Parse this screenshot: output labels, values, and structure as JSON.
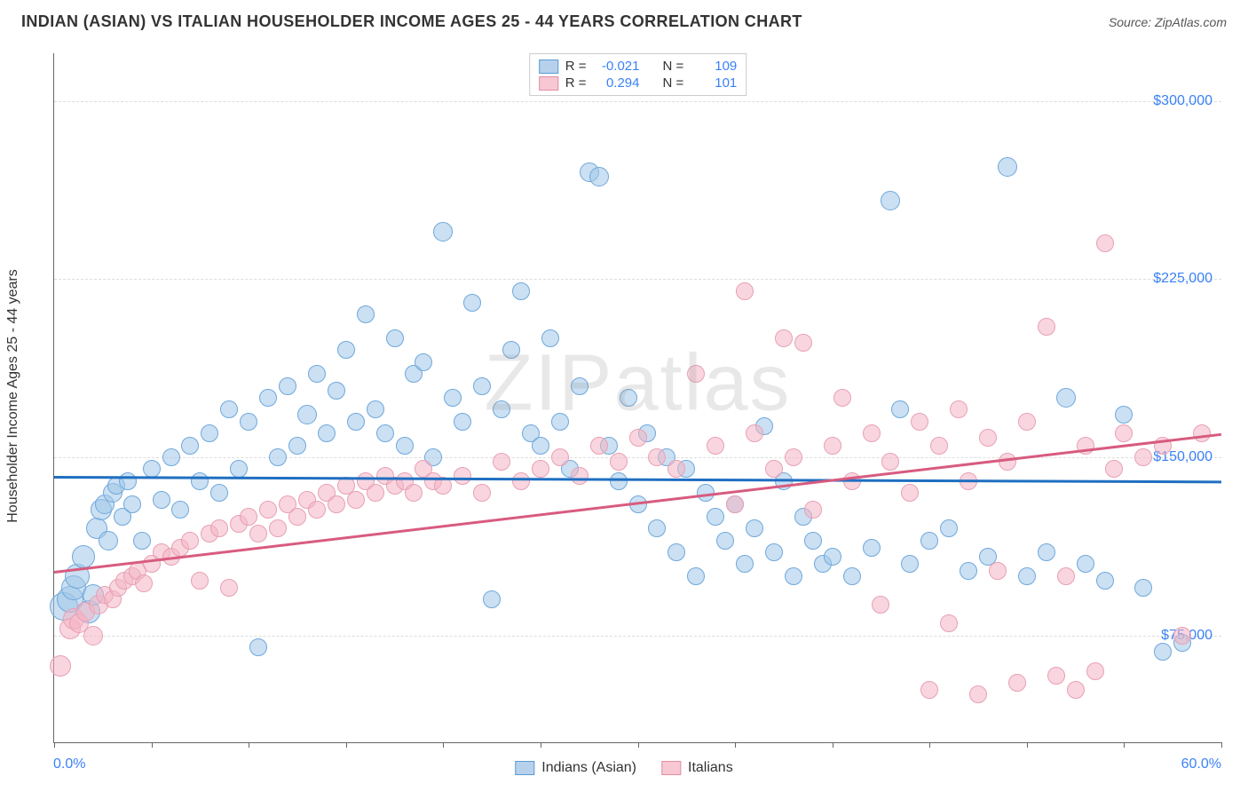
{
  "header": {
    "title": "INDIAN (ASIAN) VS ITALIAN HOUSEHOLDER INCOME AGES 25 - 44 YEARS CORRELATION CHART",
    "source": "Source: ZipAtlas.com"
  },
  "watermark": "ZIPatlas",
  "chart": {
    "type": "scatter",
    "background_color": "#ffffff",
    "grid_color": "#dddddd",
    "axis_color": "#666666",
    "y_axis_title": "Householder Income Ages 25 - 44 years",
    "y_axis_title_fontsize": 16,
    "xlim": [
      0,
      60
    ],
    "ylim": [
      30000,
      320000
    ],
    "x_ticks": [
      0,
      5,
      10,
      15,
      20,
      25,
      30,
      35,
      40,
      45,
      50,
      55,
      60
    ],
    "x_tick_labels": {
      "min": "0.0%",
      "max": "60.0%"
    },
    "y_grid": [
      75000,
      150000,
      225000,
      300000
    ],
    "y_tick_labels": [
      "$75,000",
      "$150,000",
      "$225,000",
      "$300,000"
    ],
    "tick_label_color": "#3b82f6",
    "tick_label_fontsize": 16,
    "legend_top": {
      "rows": [
        {
          "swatch_fill": "#b7d1ed",
          "swatch_border": "#5a9bd5",
          "r_label": "R =",
          "r_value": "-0.021",
          "n_label": "N =",
          "n_value": "109"
        },
        {
          "swatch_fill": "#f7c8d3",
          "swatch_border": "#e28da3",
          "r_label": "R =",
          "r_value": "0.294",
          "n_label": "N =",
          "n_value": "101"
        }
      ]
    },
    "legend_bottom": [
      {
        "swatch_fill": "#b7d1ed",
        "swatch_border": "#5a9bd5",
        "label": "Indians (Asian)"
      },
      {
        "swatch_fill": "#f7c8d3",
        "swatch_border": "#e28da3",
        "label": "Italians"
      }
    ],
    "series": [
      {
        "name": "Indians (Asian)",
        "marker_fill": "rgba(160,198,232,0.55)",
        "marker_border": "#6fa8dc",
        "marker_radius": 10,
        "trend": {
          "color": "#1f6fc1",
          "y_at_xmin": 142000,
          "y_at_xmax": 140000,
          "width": 2.5
        },
        "points": [
          [
            0.5,
            87000,
            16
          ],
          [
            0.8,
            90000,
            15
          ],
          [
            1.0,
            95000,
            14
          ],
          [
            1.2,
            100000,
            14
          ],
          [
            1.5,
            108000,
            13
          ],
          [
            1.8,
            85000,
            13
          ],
          [
            2.0,
            92000,
            12
          ],
          [
            2.2,
            120000,
            12
          ],
          [
            2.4,
            128000,
            12
          ],
          [
            2.6,
            130000,
            11
          ],
          [
            2.8,
            115000,
            11
          ],
          [
            3.0,
            135000,
            11
          ],
          [
            3.2,
            138000,
            10
          ],
          [
            3.5,
            125000,
            10
          ],
          [
            3.8,
            140000,
            10
          ],
          [
            4.0,
            130000,
            10
          ],
          [
            4.5,
            115000,
            10
          ],
          [
            5.0,
            145000,
            10
          ],
          [
            5.5,
            132000,
            10
          ],
          [
            6.0,
            150000,
            10
          ],
          [
            6.5,
            128000,
            10
          ],
          [
            7.0,
            155000,
            10
          ],
          [
            7.5,
            140000,
            10
          ],
          [
            8.0,
            160000,
            10
          ],
          [
            8.5,
            135000,
            10
          ],
          [
            9.0,
            170000,
            10
          ],
          [
            9.5,
            145000,
            10
          ],
          [
            10.0,
            165000,
            10
          ],
          [
            10.5,
            70000,
            10
          ],
          [
            11.0,
            175000,
            10
          ],
          [
            11.5,
            150000,
            10
          ],
          [
            12.0,
            180000,
            10
          ],
          [
            12.5,
            155000,
            10
          ],
          [
            13.0,
            168000,
            11
          ],
          [
            13.5,
            185000,
            10
          ],
          [
            14.0,
            160000,
            10
          ],
          [
            14.5,
            178000,
            10
          ],
          [
            15.0,
            195000,
            10
          ],
          [
            15.5,
            165000,
            10
          ],
          [
            16.0,
            210000,
            10
          ],
          [
            16.5,
            170000,
            10
          ],
          [
            17.0,
            160000,
            10
          ],
          [
            17.5,
            200000,
            10
          ],
          [
            18.0,
            155000,
            10
          ],
          [
            18.5,
            185000,
            10
          ],
          [
            19.0,
            190000,
            10
          ],
          [
            19.5,
            150000,
            10
          ],
          [
            20.0,
            245000,
            11
          ],
          [
            20.5,
            175000,
            10
          ],
          [
            21.0,
            165000,
            10
          ],
          [
            21.5,
            215000,
            10
          ],
          [
            22.0,
            180000,
            10
          ],
          [
            22.5,
            90000,
            10
          ],
          [
            23.0,
            170000,
            10
          ],
          [
            23.5,
            195000,
            10
          ],
          [
            24.0,
            220000,
            10
          ],
          [
            24.5,
            160000,
            10
          ],
          [
            25.0,
            155000,
            10
          ],
          [
            25.5,
            200000,
            10
          ],
          [
            26.0,
            165000,
            10
          ],
          [
            26.5,
            145000,
            10
          ],
          [
            27.0,
            180000,
            10
          ],
          [
            27.5,
            270000,
            11
          ],
          [
            28.0,
            268000,
            11
          ],
          [
            28.5,
            155000,
            10
          ],
          [
            29.0,
            140000,
            10
          ],
          [
            29.5,
            175000,
            10
          ],
          [
            30.0,
            130000,
            10
          ],
          [
            30.5,
            160000,
            10
          ],
          [
            31.0,
            120000,
            10
          ],
          [
            31.5,
            150000,
            10
          ],
          [
            32.0,
            110000,
            10
          ],
          [
            32.5,
            145000,
            10
          ],
          [
            33.0,
            100000,
            10
          ],
          [
            33.5,
            135000,
            10
          ],
          [
            34.0,
            125000,
            10
          ],
          [
            34.5,
            115000,
            10
          ],
          [
            35.0,
            130000,
            10
          ],
          [
            35.5,
            105000,
            10
          ],
          [
            36.0,
            120000,
            10
          ],
          [
            36.5,
            163000,
            10
          ],
          [
            37.0,
            110000,
            10
          ],
          [
            37.5,
            140000,
            10
          ],
          [
            38.0,
            100000,
            10
          ],
          [
            38.5,
            125000,
            10
          ],
          [
            39.0,
            115000,
            10
          ],
          [
            39.5,
            105000,
            10
          ],
          [
            40.0,
            108000,
            10
          ],
          [
            41.0,
            100000,
            10
          ],
          [
            42.0,
            112000,
            10
          ],
          [
            43.0,
            258000,
            11
          ],
          [
            43.5,
            170000,
            10
          ],
          [
            44.0,
            105000,
            10
          ],
          [
            45.0,
            115000,
            10
          ],
          [
            46.0,
            120000,
            10
          ],
          [
            47.0,
            102000,
            10
          ],
          [
            48.0,
            108000,
            10
          ],
          [
            49.0,
            272000,
            11
          ],
          [
            50.0,
            100000,
            10
          ],
          [
            51.0,
            110000,
            10
          ],
          [
            52.0,
            175000,
            11
          ],
          [
            53.0,
            105000,
            10
          ],
          [
            54.0,
            98000,
            10
          ],
          [
            55.0,
            168000,
            10
          ],
          [
            56.0,
            95000,
            10
          ],
          [
            57.0,
            68000,
            10
          ],
          [
            58.0,
            72000,
            10
          ]
        ]
      },
      {
        "name": "Italians",
        "marker_fill": "rgba(244,180,196,0.55)",
        "marker_border": "#e8a0b4",
        "marker_radius": 10,
        "trend": {
          "color": "#d85b7f",
          "y_at_xmin": 102000,
          "y_at_xmax": 160000,
          "width": 2.5
        },
        "points": [
          [
            0.3,
            62000,
            12
          ],
          [
            0.8,
            78000,
            12
          ],
          [
            1.0,
            82000,
            12
          ],
          [
            1.3,
            80000,
            11
          ],
          [
            1.6,
            85000,
            11
          ],
          [
            2.0,
            75000,
            11
          ],
          [
            2.3,
            88000,
            11
          ],
          [
            2.6,
            92000,
            10
          ],
          [
            3.0,
            90000,
            10
          ],
          [
            3.3,
            95000,
            10
          ],
          [
            3.6,
            98000,
            10
          ],
          [
            4.0,
            100000,
            10
          ],
          [
            4.3,
            102000,
            10
          ],
          [
            4.6,
            97000,
            10
          ],
          [
            5.0,
            105000,
            10
          ],
          [
            5.5,
            110000,
            10
          ],
          [
            6.0,
            108000,
            10
          ],
          [
            6.5,
            112000,
            10
          ],
          [
            7.0,
            115000,
            10
          ],
          [
            7.5,
            98000,
            10
          ],
          [
            8.0,
            118000,
            10
          ],
          [
            8.5,
            120000,
            10
          ],
          [
            9.0,
            95000,
            10
          ],
          [
            9.5,
            122000,
            10
          ],
          [
            10.0,
            125000,
            10
          ],
          [
            10.5,
            118000,
            10
          ],
          [
            11.0,
            128000,
            10
          ],
          [
            11.5,
            120000,
            10
          ],
          [
            12.0,
            130000,
            10
          ],
          [
            12.5,
            125000,
            10
          ],
          [
            13.0,
            132000,
            10
          ],
          [
            13.5,
            128000,
            10
          ],
          [
            14.0,
            135000,
            10
          ],
          [
            14.5,
            130000,
            10
          ],
          [
            15.0,
            138000,
            10
          ],
          [
            15.5,
            132000,
            10
          ],
          [
            16.0,
            140000,
            10
          ],
          [
            16.5,
            135000,
            10
          ],
          [
            17.0,
            142000,
            10
          ],
          [
            17.5,
            138000,
            10
          ],
          [
            18.0,
            140000,
            10
          ],
          [
            18.5,
            135000,
            10
          ],
          [
            19.0,
            145000,
            10
          ],
          [
            19.5,
            140000,
            10
          ],
          [
            20.0,
            138000,
            10
          ],
          [
            21.0,
            142000,
            10
          ],
          [
            22.0,
            135000,
            10
          ],
          [
            23.0,
            148000,
            10
          ],
          [
            24.0,
            140000,
            10
          ],
          [
            25.0,
            145000,
            10
          ],
          [
            26.0,
            150000,
            10
          ],
          [
            27.0,
            142000,
            10
          ],
          [
            28.0,
            155000,
            10
          ],
          [
            29.0,
            148000,
            10
          ],
          [
            30.0,
            158000,
            10
          ],
          [
            31.0,
            150000,
            10
          ],
          [
            32.0,
            145000,
            10
          ],
          [
            33.0,
            185000,
            10
          ],
          [
            34.0,
            155000,
            10
          ],
          [
            35.0,
            130000,
            10
          ],
          [
            35.5,
            220000,
            10
          ],
          [
            36.0,
            160000,
            10
          ],
          [
            37.0,
            145000,
            10
          ],
          [
            37.5,
            200000,
            10
          ],
          [
            38.0,
            150000,
            10
          ],
          [
            38.5,
            198000,
            10
          ],
          [
            39.0,
            128000,
            10
          ],
          [
            40.0,
            155000,
            10
          ],
          [
            40.5,
            175000,
            10
          ],
          [
            41.0,
            140000,
            10
          ],
          [
            42.0,
            160000,
            10
          ],
          [
            42.5,
            88000,
            10
          ],
          [
            43.0,
            148000,
            10
          ],
          [
            44.0,
            135000,
            10
          ],
          [
            44.5,
            165000,
            10
          ],
          [
            45.0,
            52000,
            10
          ],
          [
            45.5,
            155000,
            10
          ],
          [
            46.0,
            80000,
            10
          ],
          [
            46.5,
            170000,
            10
          ],
          [
            47.0,
            140000,
            10
          ],
          [
            47.5,
            50000,
            10
          ],
          [
            48.0,
            158000,
            10
          ],
          [
            48.5,
            102000,
            10
          ],
          [
            49.0,
            148000,
            10
          ],
          [
            49.5,
            55000,
            10
          ],
          [
            50.0,
            165000,
            10
          ],
          [
            51.0,
            205000,
            10
          ],
          [
            51.5,
            58000,
            10
          ],
          [
            52.0,
            100000,
            10
          ],
          [
            52.5,
            52000,
            10
          ],
          [
            53.0,
            155000,
            10
          ],
          [
            53.5,
            60000,
            10
          ],
          [
            54.0,
            240000,
            10
          ],
          [
            54.5,
            145000,
            10
          ],
          [
            55.0,
            160000,
            10
          ],
          [
            56.0,
            150000,
            10
          ],
          [
            57.0,
            155000,
            10
          ],
          [
            58.0,
            75000,
            10
          ],
          [
            59.0,
            160000,
            10
          ]
        ]
      }
    ]
  }
}
